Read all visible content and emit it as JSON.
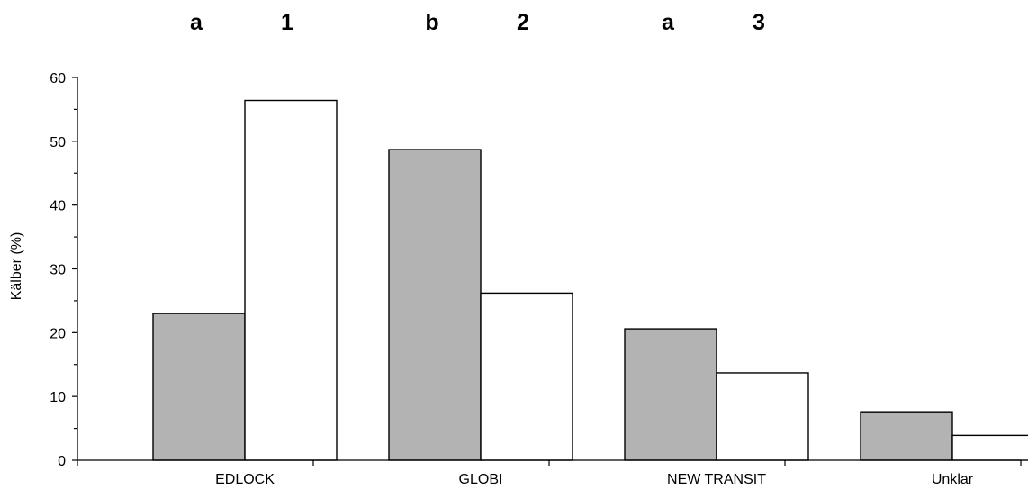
{
  "chart_data": {
    "type": "bar",
    "ylabel": "Kälber (%)",
    "xlabel": "",
    "ylim": [
      0,
      60
    ],
    "ytick_step": 10,
    "yticks": [
      "0",
      "10",
      "20",
      "30",
      "40",
      "50",
      "60"
    ],
    "categories": [
      "EDLOCK",
      "GLOBI",
      "NEW TRANSIT",
      "Unklar"
    ],
    "series": [
      {
        "fill": "#b3b3b3",
        "values": [
          23,
          48.7,
          20.6,
          7.6
        ]
      },
      {
        "fill": "#ffffff",
        "values": [
          56.4,
          26.2,
          13.7,
          3.9
        ]
      }
    ],
    "significance_labels": [
      {
        "text": "a",
        "category": 0,
        "series": 0
      },
      {
        "text": "1",
        "category": 0,
        "series": 1
      },
      {
        "text": "b",
        "category": 1,
        "series": 0
      },
      {
        "text": "2",
        "category": 1,
        "series": 1
      },
      {
        "text": "a",
        "category": 2,
        "series": 0
      },
      {
        "text": "3",
        "category": 2,
        "series": 1
      }
    ],
    "grid": false,
    "legend": "none"
  }
}
